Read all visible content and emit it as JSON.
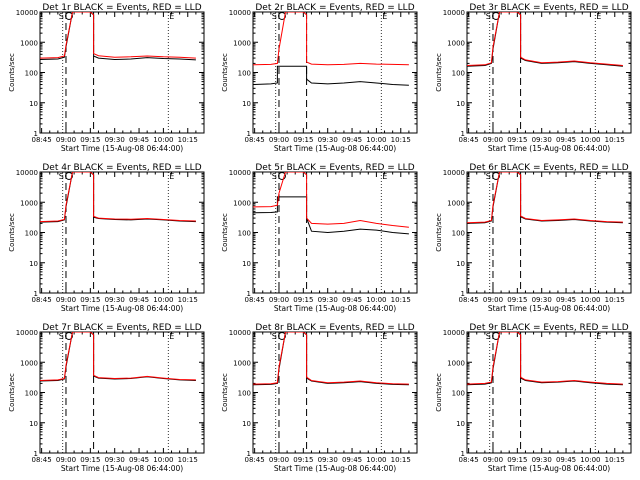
{
  "figure": {
    "background": "#ffffff",
    "colors": {
      "events": "#000000",
      "lld": "#ff0000",
      "axis": "#000000"
    }
  },
  "common": {
    "xlabel": "Start Time (15-Aug-08 06:44:00)",
    "ylabel": "Counts/sec",
    "x_tick_labels": [
      "08:45",
      "09:00",
      "09:15",
      "09:30",
      "09:45",
      "10:00",
      "10:15"
    ],
    "y_tick_labels": [
      "1",
      "10",
      "100",
      "1000",
      "10000"
    ],
    "annotations": {
      "s_marker": "S",
      "e_marker": "E"
    }
  },
  "chart_data": [
    {
      "type": "line",
      "title": "Det 1r BLACK = Events, RED = LLD",
      "xlabel": "Start Time (15-Aug-08 06:44:00)",
      "ylabel": "Counts/sec",
      "x_range": [
        "08:44",
        "10:25"
      ],
      "ylim": [
        1,
        10000
      ],
      "y_scale": "log",
      "grid": false,
      "time_markers": {
        "dotted": [
          "08:58",
          "10:03"
        ],
        "dashed": [
          "09:00",
          "09:17"
        ]
      },
      "series": [
        {
          "x": [
            "08:44",
            "08:55",
            "08:59",
            "09:00",
            "09:04",
            "09:10",
            "09:15",
            "09:17",
            "09:17",
            "09:20",
            "09:30",
            "09:40",
            "09:50",
            "10:00",
            "10:10",
            "10:20"
          ],
          "values": [
            270,
            280,
            320,
            700,
            10000,
            10000,
            10000,
            8000,
            350,
            300,
            270,
            280,
            310,
            290,
            280,
            260
          ]
        },
        {
          "x": [
            "08:44",
            "08:55",
            "08:59",
            "09:00",
            "09:04",
            "09:10",
            "09:15",
            "09:17",
            "09:17",
            "09:20",
            "09:30",
            "09:40",
            "09:50",
            "10:00",
            "10:10",
            "10:20"
          ],
          "values": [
            300,
            310,
            350,
            800,
            10000,
            10000,
            10000,
            8000,
            420,
            360,
            320,
            330,
            350,
            330,
            320,
            300
          ]
        }
      ]
    },
    {
      "type": "line",
      "title": "Det 2r BLACK = Events, RED = LLD",
      "xlabel": "Start Time (15-Aug-08 06:44:00)",
      "ylabel": "Counts/sec",
      "x_range": [
        "08:44",
        "10:25"
      ],
      "ylim": [
        1,
        10000
      ],
      "y_scale": "log",
      "grid": false,
      "time_markers": {
        "dotted": [
          "08:58",
          "10:03"
        ],
        "dashed": [
          "09:00",
          "09:17"
        ]
      },
      "series": [
        {
          "x": [
            "08:44",
            "08:55",
            "08:59",
            "08:59",
            "09:17",
            "09:17",
            "09:20",
            "09:30",
            "09:40",
            "09:50",
            "10:00",
            "10:10",
            "10:20"
          ],
          "values": [
            40,
            42,
            45,
            160,
            160,
            60,
            45,
            42,
            45,
            50,
            45,
            40,
            38
          ]
        },
        {
          "x": [
            "08:44",
            "08:55",
            "08:59",
            "09:00",
            "09:04",
            "09:10",
            "09:15",
            "09:17",
            "09:17",
            "09:20",
            "09:30",
            "09:40",
            "09:50",
            "10:00",
            "10:10",
            "10:20"
          ],
          "values": [
            180,
            185,
            200,
            600,
            10000,
            10000,
            10000,
            8000,
            220,
            190,
            180,
            185,
            200,
            190,
            185,
            180
          ]
        }
      ]
    },
    {
      "type": "line",
      "title": "Det 3r BLACK = Events, RED = LLD",
      "xlabel": "Start Time (15-Aug-08 06:44:00)",
      "ylabel": "Counts/sec",
      "x_range": [
        "08:44",
        "10:25"
      ],
      "ylim": [
        1,
        10000
      ],
      "y_scale": "log",
      "grid": false,
      "time_markers": {
        "dotted": [
          "08:58",
          "10:03"
        ],
        "dashed": [
          "09:00",
          "09:17"
        ]
      },
      "series": [
        {
          "x": [
            "08:44",
            "08:55",
            "08:59",
            "09:00",
            "09:04",
            "09:10",
            "09:15",
            "09:17",
            "09:17",
            "09:20",
            "09:30",
            "09:40",
            "09:50",
            "10:00",
            "10:10",
            "10:20"
          ],
          "values": [
            160,
            170,
            200,
            600,
            10000,
            10000,
            10000,
            8000,
            300,
            250,
            200,
            210,
            230,
            200,
            180,
            160
          ]
        },
        {
          "x": [
            "08:44",
            "08:55",
            "08:59",
            "09:00",
            "09:04",
            "09:10",
            "09:15",
            "09:17",
            "09:17",
            "09:20",
            "09:30",
            "09:40",
            "09:50",
            "10:00",
            "10:10",
            "10:20"
          ],
          "values": [
            170,
            180,
            210,
            700,
            10000,
            10000,
            10000,
            8000,
            320,
            260,
            210,
            220,
            240,
            210,
            190,
            170
          ]
        }
      ]
    },
    {
      "type": "line",
      "title": "Det 4r BLACK = Events, RED = LLD",
      "xlabel": "Start Time (15-Aug-08 06:44:00)",
      "ylabel": "Counts/sec",
      "x_range": [
        "08:44",
        "10:25"
      ],
      "ylim": [
        1,
        10000
      ],
      "y_scale": "log",
      "grid": false,
      "time_markers": {
        "dotted": [
          "08:58",
          "10:03"
        ],
        "dashed": [
          "09:00",
          "09:17"
        ]
      },
      "series": [
        {
          "x": [
            "08:44",
            "08:55",
            "08:59",
            "09:00",
            "09:04",
            "09:10",
            "09:15",
            "09:17",
            "09:17",
            "09:20",
            "09:30",
            "09:40",
            "09:50",
            "10:00",
            "10:10",
            "10:20"
          ],
          "values": [
            220,
            230,
            260,
            700,
            10000,
            10000,
            10000,
            8000,
            320,
            290,
            270,
            260,
            280,
            260,
            240,
            230
          ]
        },
        {
          "x": [
            "08:44",
            "08:55",
            "08:59",
            "09:00",
            "09:04",
            "09:10",
            "09:15",
            "09:17",
            "09:17",
            "09:20",
            "09:30",
            "09:40",
            "09:50",
            "10:00",
            "10:10",
            "10:20"
          ],
          "values": [
            230,
            240,
            270,
            800,
            10000,
            10000,
            10000,
            8000,
            340,
            300,
            280,
            275,
            290,
            270,
            250,
            240
          ]
        }
      ]
    },
    {
      "type": "line",
      "title": "Det 5r BLACK = Events, RED = LLD",
      "xlabel": "Start Time (15-Aug-08 06:44:00)",
      "ylabel": "Counts/sec",
      "x_range": [
        "08:44",
        "10:25"
      ],
      "ylim": [
        1,
        10000
      ],
      "y_scale": "log",
      "grid": false,
      "time_markers": {
        "dotted": [
          "08:58",
          "10:03"
        ],
        "dashed": [
          "09:00",
          "09:17"
        ]
      },
      "series": [
        {
          "x": [
            "08:44",
            "08:55",
            "08:59",
            "08:59",
            "09:17",
            "09:17",
            "09:20",
            "09:30",
            "09:40",
            "09:50",
            "10:00",
            "10:10",
            "10:20"
          ],
          "values": [
            450,
            460,
            480,
            1500,
            1500,
            300,
            110,
            100,
            110,
            130,
            120,
            100,
            90
          ]
        },
        {
          "x": [
            "08:44",
            "08:55",
            "08:59",
            "09:00",
            "09:04",
            "09:10",
            "09:15",
            "09:17",
            "09:17",
            "09:20",
            "09:30",
            "09:40",
            "09:50",
            "10:00",
            "10:10",
            "10:20"
          ],
          "values": [
            700,
            720,
            800,
            2000,
            10000,
            10000,
            10000,
            8000,
            300,
            200,
            190,
            200,
            250,
            200,
            170,
            150
          ]
        }
      ]
    },
    {
      "type": "line",
      "title": "Det 6r BLACK = Events, RED = LLD",
      "xlabel": "Start Time (15-Aug-08 06:44:00)",
      "ylabel": "Counts/sec",
      "x_range": [
        "08:44",
        "10:25"
      ],
      "ylim": [
        1,
        10000
      ],
      "y_scale": "log",
      "grid": false,
      "time_markers": {
        "dotted": [
          "08:58",
          "10:03"
        ],
        "dashed": [
          "09:00",
          "09:17"
        ]
      },
      "series": [
        {
          "x": [
            "08:44",
            "08:55",
            "08:59",
            "09:00",
            "09:04",
            "09:10",
            "09:15",
            "09:17",
            "09:17",
            "09:20",
            "09:30",
            "09:40",
            "09:50",
            "10:00",
            "10:10",
            "10:20"
          ],
          "values": [
            200,
            210,
            240,
            700,
            10000,
            10000,
            10000,
            8000,
            330,
            280,
            240,
            250,
            270,
            240,
            220,
            210
          ]
        },
        {
          "x": [
            "08:44",
            "08:55",
            "08:59",
            "09:00",
            "09:04",
            "09:10",
            "09:15",
            "09:17",
            "09:17",
            "09:20",
            "09:30",
            "09:40",
            "09:50",
            "10:00",
            "10:10",
            "10:20"
          ],
          "values": [
            210,
            220,
            250,
            800,
            10000,
            10000,
            10000,
            8000,
            350,
            290,
            250,
            260,
            280,
            250,
            230,
            220
          ]
        }
      ]
    },
    {
      "type": "line",
      "title": "Det 7r BLACK = Events, RED = LLD",
      "xlabel": "Start Time (15-Aug-08 06:44:00)",
      "ylabel": "Counts/sec",
      "x_range": [
        "08:44",
        "10:25"
      ],
      "ylim": [
        1,
        10000
      ],
      "y_scale": "log",
      "grid": false,
      "time_markers": {
        "dotted": [
          "08:58",
          "10:03"
        ],
        "dashed": [
          "09:00",
          "09:17"
        ]
      },
      "series": [
        {
          "x": [
            "08:44",
            "08:55",
            "08:59",
            "09:00",
            "09:04",
            "09:10",
            "09:15",
            "09:17",
            "09:17",
            "09:20",
            "09:30",
            "09:40",
            "09:50",
            "10:00",
            "10:10",
            "10:20"
          ],
          "values": [
            240,
            250,
            280,
            700,
            10000,
            10000,
            10000,
            8000,
            350,
            300,
            280,
            290,
            330,
            290,
            260,
            250
          ]
        },
        {
          "x": [
            "08:44",
            "08:55",
            "08:59",
            "09:00",
            "09:04",
            "09:10",
            "09:15",
            "09:17",
            "09:17",
            "09:20",
            "09:30",
            "09:40",
            "09:50",
            "10:00",
            "10:10",
            "10:20"
          ],
          "values": [
            250,
            260,
            290,
            800,
            10000,
            10000,
            10000,
            8000,
            370,
            310,
            290,
            300,
            340,
            300,
            270,
            260
          ]
        }
      ]
    },
    {
      "type": "line",
      "title": "Det 8r BLACK = Events, RED = LLD",
      "xlabel": "Start Time (15-Aug-08 06:44:00)",
      "ylabel": "Counts/sec",
      "x_range": [
        "08:44",
        "10:25"
      ],
      "ylim": [
        1,
        10000
      ],
      "y_scale": "log",
      "grid": false,
      "time_markers": {
        "dotted": [
          "08:58",
          "10:03"
        ],
        "dashed": [
          "09:00",
          "09:17"
        ]
      },
      "series": [
        {
          "x": [
            "08:44",
            "08:55",
            "08:59",
            "09:00",
            "09:04",
            "09:10",
            "09:15",
            "09:17",
            "09:17",
            "09:20",
            "09:30",
            "09:40",
            "09:50",
            "10:00",
            "10:10",
            "10:20"
          ],
          "values": [
            180,
            185,
            200,
            600,
            10000,
            10000,
            10000,
            8000,
            300,
            240,
            200,
            210,
            230,
            200,
            185,
            180
          ]
        },
        {
          "x": [
            "08:44",
            "08:55",
            "08:59",
            "09:00",
            "09:04",
            "09:10",
            "09:15",
            "09:17",
            "09:17",
            "09:20",
            "09:30",
            "09:40",
            "09:50",
            "10:00",
            "10:10",
            "10:20"
          ],
          "values": [
            190,
            195,
            210,
            700,
            10000,
            10000,
            10000,
            8000,
            320,
            250,
            210,
            220,
            240,
            210,
            195,
            190
          ]
        }
      ]
    },
    {
      "type": "line",
      "title": "Det 9r BLACK = Events, RED = LLD",
      "xlabel": "Start Time (15-Aug-08 06:44:00)",
      "ylabel": "Counts/sec",
      "x_range": [
        "08:44",
        "10:25"
      ],
      "ylim": [
        1,
        10000
      ],
      "y_scale": "log",
      "grid": false,
      "time_markers": {
        "dotted": [
          "08:58",
          "10:03"
        ],
        "dashed": [
          "09:00",
          "09:17"
        ]
      },
      "series": [
        {
          "x": [
            "08:44",
            "08:55",
            "08:59",
            "09:00",
            "09:04",
            "09:10",
            "09:15",
            "09:17",
            "09:17",
            "09:20",
            "09:30",
            "09:40",
            "09:50",
            "10:00",
            "10:10",
            "10:20"
          ],
          "values": [
            180,
            190,
            210,
            600,
            10000,
            10000,
            10000,
            8000,
            300,
            250,
            210,
            220,
            240,
            210,
            190,
            180
          ]
        },
        {
          "x": [
            "08:44",
            "08:55",
            "08:59",
            "09:00",
            "09:04",
            "09:10",
            "09:15",
            "09:17",
            "09:17",
            "09:20",
            "09:30",
            "09:40",
            "09:50",
            "10:00",
            "10:10",
            "10:20"
          ],
          "values": [
            190,
            200,
            220,
            700,
            10000,
            10000,
            10000,
            8000,
            320,
            260,
            220,
            230,
            250,
            220,
            200,
            190
          ]
        }
      ]
    }
  ]
}
